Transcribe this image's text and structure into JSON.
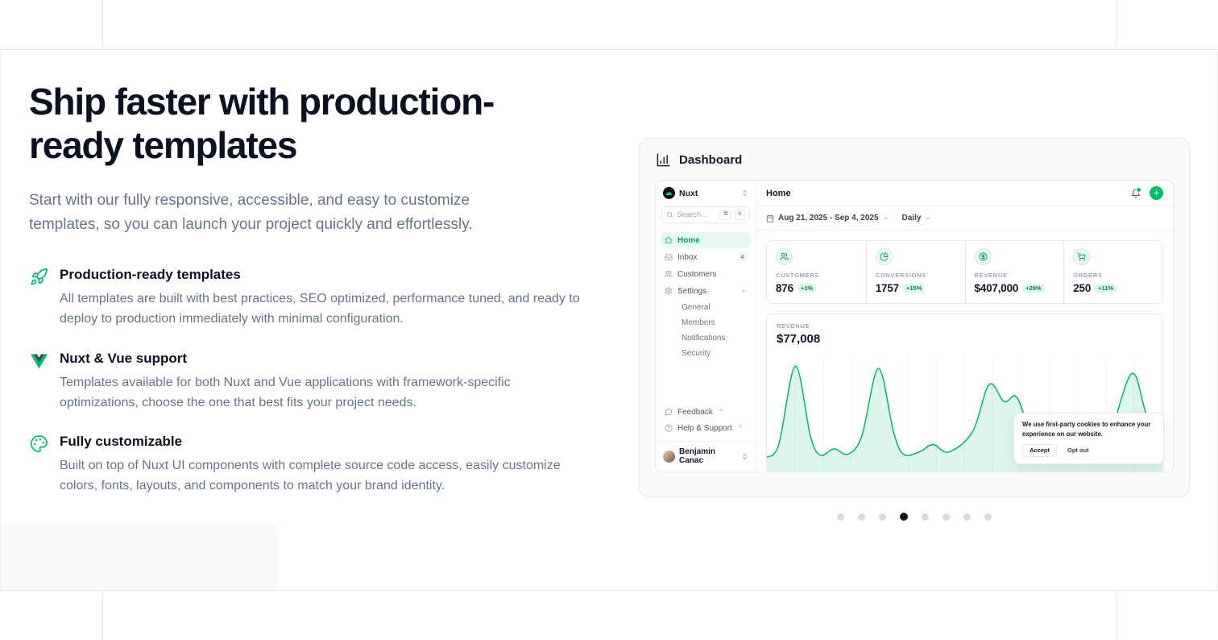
{
  "colors": {
    "accent": "#00c16a",
    "accent_soft": "#e7f9ef",
    "text_dark": "#0b1121",
    "text_muted": "#64748b"
  },
  "hero": {
    "title_line1": "Ship faster with production-",
    "title_line2": "ready templates",
    "subtitle": "Start with our fully responsive, accessible, and easy to customize templates, so you can launch your project quickly and effortlessly.",
    "features": [
      {
        "icon": "rocket-icon",
        "title": "Production-ready templates",
        "description": "All templates are built with best practices, SEO optimized, performance tuned, and ready to deploy to production immediately with minimal configuration."
      },
      {
        "icon": "vue-icon",
        "title": "Nuxt & Vue support",
        "description": "Templates available for both Nuxt and Vue applications with framework-specific optimizations, choose the one that best fits your project needs."
      },
      {
        "icon": "palette-icon",
        "title": "Fully customizable",
        "description": "Built on top of Nuxt UI components with complete source code access, easily customize colors, fonts, layouts, and components to match your brand identity."
      }
    ]
  },
  "preview": {
    "title": "Dashboard",
    "dots": {
      "count": 8,
      "active_index": 3
    },
    "dashboard": {
      "sidebar": {
        "workspace": "Nuxt",
        "search_placeholder": "Search...",
        "kbd_cmd": "⌘",
        "kbd_k": "K",
        "nav": {
          "home": {
            "label": "Home"
          },
          "inbox": {
            "label": "Inbox",
            "badge": "4"
          },
          "customers": {
            "label": "Customers"
          },
          "settings": {
            "label": "Settings"
          }
        },
        "settings_children": [
          "General",
          "Members",
          "Notifications",
          "Security"
        ],
        "links": {
          "feedback": "Feedback",
          "help": "Help & Support"
        },
        "user": "Benjamin Canac"
      },
      "topbar": {
        "title": "Home"
      },
      "filters": {
        "date_range": "Aug 21, 2025 - Sep 4, 2025",
        "period": "Daily"
      },
      "stats": [
        {
          "icon": "users-icon",
          "label": "CUSTOMERS",
          "value": "876",
          "delta": "+1%"
        },
        {
          "icon": "pie-chart-icon",
          "label": "CONVERSIONS",
          "value": "1757",
          "delta": "+15%"
        },
        {
          "icon": "dollar-circle-icon",
          "label": "REVENUE",
          "value": "$407,000",
          "delta": "+29%"
        },
        {
          "icon": "cart-icon",
          "label": "ORDERS",
          "value": "250",
          "delta": "+11%"
        }
      ],
      "chart_data": {
        "type": "area",
        "label": "REVENUE",
        "value": "$77,008",
        "gridlines": 13,
        "points": [
          [
            0,
            0.1
          ],
          [
            0.03,
            0.22
          ],
          [
            0.072,
            0.95
          ],
          [
            0.11,
            0.3
          ],
          [
            0.135,
            0.12
          ],
          [
            0.17,
            0.18
          ],
          [
            0.205,
            0.13
          ],
          [
            0.24,
            0.3
          ],
          [
            0.282,
            0.93
          ],
          [
            0.32,
            0.34
          ],
          [
            0.345,
            0.13
          ],
          [
            0.385,
            0.15
          ],
          [
            0.42,
            0.22
          ],
          [
            0.46,
            0.15
          ],
          [
            0.52,
            0.34
          ],
          [
            0.562,
            0.78
          ],
          [
            0.6,
            0.62
          ],
          [
            0.632,
            0.66
          ],
          [
            0.67,
            0.3
          ],
          [
            0.71,
            0.17
          ],
          [
            0.755,
            0.14
          ],
          [
            0.8,
            0.17
          ],
          [
            0.86,
            0.26
          ],
          [
            0.922,
            0.88
          ],
          [
            0.96,
            0.5
          ],
          [
            1,
            0.28
          ]
        ]
      },
      "cookie": {
        "message": "We use first-party cookies to enhance your experience on our website.",
        "accept_label": "Accept",
        "optout_label": "Opt out"
      }
    }
  }
}
